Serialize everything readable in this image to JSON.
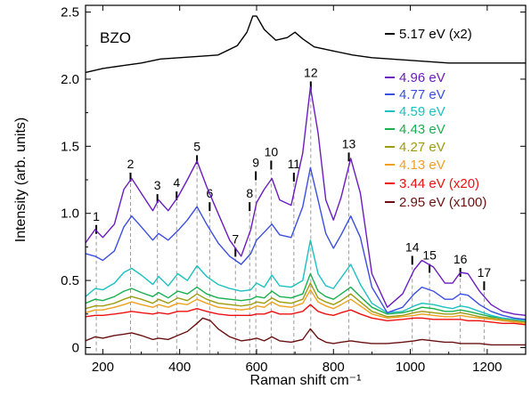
{
  "chart_data": {
    "type": "line",
    "xlabel": "Raman shift cm⁻¹",
    "ylabel": "Intensity (arb. units)",
    "xlim": [
      155,
      1300
    ],
    "ylim": [
      -0.05,
      2.55
    ],
    "xticks": [
      200,
      400,
      600,
      800,
      1000,
      1200
    ],
    "yticks": [
      0,
      0.5,
      1.0,
      1.5,
      2.0,
      2.5
    ],
    "ytick_labels": [
      "0",
      "0.5",
      "1.0",
      "1.5",
      "2.0",
      "2.5"
    ],
    "sample_label": "BZO",
    "legend_position": "right",
    "series": [
      {
        "name": "5.17 eV (x2)",
        "color": "#000000",
        "x": [
          155,
          200,
          250,
          300,
          350,
          400,
          450,
          500,
          550,
          575,
          590,
          600,
          620,
          650,
          680,
          700,
          720,
          750,
          800,
          850,
          900,
          950,
          1000,
          1050,
          1100,
          1150,
          1200,
          1250,
          1300
        ],
        "y": [
          2.05,
          2.08,
          2.1,
          2.12,
          2.15,
          2.16,
          2.17,
          2.18,
          2.25,
          2.35,
          2.47,
          2.47,
          2.37,
          2.29,
          2.31,
          2.35,
          2.3,
          2.24,
          2.21,
          2.18,
          2.16,
          2.15,
          2.14,
          2.13,
          2.12,
          2.12,
          2.12,
          2.12,
          2.12
        ]
      },
      {
        "name": "4.96 eV",
        "color": "#6a1cc0",
        "x": [
          155,
          180,
          200,
          230,
          255,
          275,
          300,
          330,
          345,
          370,
          395,
          420,
          445,
          470,
          500,
          530,
          560,
          585,
          600,
          620,
          640,
          660,
          690,
          720,
          740,
          760,
          780,
          800,
          820,
          845,
          870,
          900,
          940,
          980,
          1010,
          1030,
          1060,
          1090,
          1110,
          1130,
          1150,
          1180,
          1210,
          1240,
          1270,
          1300
        ],
        "y": [
          0.78,
          0.88,
          0.82,
          0.92,
          1.18,
          1.26,
          1.15,
          1.02,
          1.1,
          1.02,
          1.12,
          1.25,
          1.39,
          1.2,
          1.0,
          0.8,
          0.68,
          0.88,
          1.08,
          1.18,
          1.26,
          1.1,
          1.06,
          1.45,
          1.94,
          1.6,
          1.1,
          0.95,
          1.12,
          1.41,
          1.15,
          0.55,
          0.3,
          0.4,
          0.58,
          0.65,
          0.6,
          0.48,
          0.48,
          0.56,
          0.55,
          0.42,
          0.32,
          0.27,
          0.25,
          0.24
        ]
      },
      {
        "name": "4.77 eV",
        "color": "#3a4ee0",
        "x": [
          155,
          180,
          200,
          230,
          255,
          275,
          300,
          330,
          345,
          370,
          395,
          420,
          445,
          470,
          500,
          530,
          560,
          585,
          600,
          620,
          640,
          660,
          690,
          720,
          740,
          760,
          780,
          800,
          820,
          845,
          870,
          900,
          940,
          980,
          1010,
          1030,
          1060,
          1090,
          1110,
          1130,
          1150,
          1180,
          1210,
          1240,
          1270,
          1300
        ],
        "y": [
          0.7,
          0.68,
          0.65,
          0.72,
          0.9,
          0.98,
          0.9,
          0.8,
          0.85,
          0.8,
          0.87,
          0.95,
          1.05,
          0.92,
          0.78,
          0.68,
          0.62,
          0.7,
          0.8,
          0.86,
          0.92,
          0.84,
          0.82,
          1.05,
          1.34,
          1.1,
          0.85,
          0.74,
          0.84,
          0.98,
          0.82,
          0.45,
          0.26,
          0.3,
          0.4,
          0.45,
          0.42,
          0.36,
          0.36,
          0.4,
          0.39,
          0.32,
          0.27,
          0.24,
          0.22,
          0.21
        ]
      },
      {
        "name": "4.59 eV",
        "color": "#1cc0c0",
        "x": [
          155,
          180,
          200,
          230,
          255,
          275,
          300,
          330,
          345,
          370,
          395,
          420,
          445,
          470,
          500,
          530,
          560,
          585,
          600,
          620,
          640,
          660,
          690,
          720,
          740,
          760,
          780,
          800,
          820,
          845,
          870,
          900,
          940,
          980,
          1010,
          1030,
          1060,
          1090,
          1110,
          1130,
          1150,
          1180,
          1210,
          1240,
          1270,
          1300
        ],
        "y": [
          0.38,
          0.44,
          0.43,
          0.48,
          0.56,
          0.59,
          0.54,
          0.47,
          0.53,
          0.46,
          0.55,
          0.5,
          0.61,
          0.53,
          0.47,
          0.44,
          0.42,
          0.43,
          0.48,
          0.45,
          0.54,
          0.46,
          0.45,
          0.5,
          0.8,
          0.55,
          0.46,
          0.44,
          0.52,
          0.62,
          0.47,
          0.33,
          0.26,
          0.27,
          0.31,
          0.33,
          0.32,
          0.3,
          0.29,
          0.31,
          0.3,
          0.27,
          0.24,
          0.22,
          0.21,
          0.2
        ]
      },
      {
        "name": "4.43 eV",
        "color": "#1ab050",
        "x": [
          155,
          180,
          200,
          230,
          255,
          275,
          300,
          330,
          345,
          370,
          395,
          420,
          445,
          470,
          500,
          530,
          560,
          585,
          600,
          620,
          640,
          660,
          690,
          720,
          740,
          760,
          780,
          800,
          820,
          845,
          870,
          900,
          940,
          980,
          1010,
          1030,
          1060,
          1090,
          1110,
          1130,
          1150,
          1180,
          1210,
          1240,
          1270,
          1300
        ],
        "y": [
          0.33,
          0.36,
          0.35,
          0.38,
          0.42,
          0.44,
          0.41,
          0.38,
          0.41,
          0.37,
          0.42,
          0.4,
          0.45,
          0.4,
          0.37,
          0.36,
          0.35,
          0.36,
          0.38,
          0.37,
          0.42,
          0.38,
          0.37,
          0.4,
          0.55,
          0.42,
          0.38,
          0.36,
          0.4,
          0.45,
          0.38,
          0.3,
          0.25,
          0.26,
          0.28,
          0.3,
          0.29,
          0.27,
          0.27,
          0.28,
          0.27,
          0.25,
          0.23,
          0.22,
          0.21,
          0.2
        ]
      },
      {
        "name": "4.27 eV",
        "color": "#9c9c10",
        "x": [
          155,
          180,
          200,
          230,
          255,
          275,
          300,
          330,
          345,
          370,
          395,
          420,
          445,
          470,
          500,
          530,
          560,
          585,
          600,
          620,
          640,
          660,
          690,
          720,
          740,
          760,
          780,
          800,
          820,
          845,
          870,
          900,
          940,
          980,
          1010,
          1030,
          1060,
          1090,
          1110,
          1130,
          1150,
          1180,
          1210,
          1240,
          1270,
          1300
        ],
        "y": [
          0.29,
          0.31,
          0.31,
          0.33,
          0.36,
          0.38,
          0.36,
          0.33,
          0.36,
          0.33,
          0.37,
          0.35,
          0.4,
          0.36,
          0.33,
          0.32,
          0.31,
          0.32,
          0.34,
          0.33,
          0.37,
          0.34,
          0.33,
          0.36,
          0.48,
          0.37,
          0.34,
          0.32,
          0.35,
          0.4,
          0.34,
          0.27,
          0.23,
          0.24,
          0.26,
          0.27,
          0.26,
          0.25,
          0.25,
          0.26,
          0.25,
          0.23,
          0.22,
          0.21,
          0.2,
          0.19
        ]
      },
      {
        "name": "4.13 eV",
        "color": "#f0a020",
        "x": [
          155,
          180,
          200,
          230,
          255,
          275,
          300,
          330,
          345,
          370,
          395,
          420,
          445,
          470,
          500,
          530,
          560,
          585,
          600,
          620,
          640,
          660,
          690,
          720,
          740,
          760,
          780,
          800,
          820,
          845,
          870,
          900,
          940,
          980,
          1010,
          1030,
          1060,
          1090,
          1110,
          1130,
          1150,
          1180,
          1210,
          1240,
          1270,
          1300
        ],
        "y": [
          0.26,
          0.28,
          0.28,
          0.3,
          0.32,
          0.34,
          0.32,
          0.3,
          0.32,
          0.3,
          0.33,
          0.32,
          0.36,
          0.33,
          0.3,
          0.29,
          0.28,
          0.29,
          0.31,
          0.3,
          0.34,
          0.31,
          0.3,
          0.33,
          0.43,
          0.34,
          0.31,
          0.29,
          0.32,
          0.36,
          0.31,
          0.25,
          0.22,
          0.23,
          0.24,
          0.25,
          0.24,
          0.23,
          0.23,
          0.24,
          0.23,
          0.22,
          0.21,
          0.2,
          0.19,
          0.18
        ]
      },
      {
        "name": "3.44 eV (x20)",
        "color": "#ee1010",
        "x": [
          155,
          180,
          200,
          230,
          255,
          275,
          300,
          330,
          345,
          370,
          395,
          420,
          445,
          470,
          500,
          530,
          560,
          585,
          600,
          620,
          640,
          660,
          690,
          720,
          740,
          760,
          780,
          800,
          820,
          845,
          870,
          900,
          940,
          980,
          1010,
          1030,
          1060,
          1090,
          1110,
          1130,
          1150,
          1180,
          1210,
          1240,
          1270,
          1300
        ],
        "y": [
          0.23,
          0.24,
          0.24,
          0.25,
          0.26,
          0.27,
          0.26,
          0.25,
          0.26,
          0.25,
          0.27,
          0.27,
          0.29,
          0.27,
          0.25,
          0.24,
          0.24,
          0.24,
          0.25,
          0.25,
          0.27,
          0.25,
          0.25,
          0.27,
          0.32,
          0.27,
          0.25,
          0.24,
          0.26,
          0.28,
          0.25,
          0.22,
          0.2,
          0.21,
          0.22,
          0.22,
          0.21,
          0.21,
          0.21,
          0.21,
          0.2,
          0.2,
          0.19,
          0.18,
          0.18,
          0.17
        ]
      },
      {
        "name": "2.95 eV (x100)",
        "color": "#6a1010",
        "x": [
          155,
          180,
          200,
          230,
          255,
          275,
          300,
          330,
          345,
          370,
          395,
          420,
          445,
          460,
          480,
          500,
          530,
          560,
          585,
          600,
          620,
          640,
          660,
          690,
          720,
          740,
          760,
          780,
          800,
          820,
          845,
          870,
          900,
          940,
          980,
          1010,
          1030,
          1060,
          1090,
          1110,
          1130,
          1150,
          1180,
          1210,
          1240,
          1270,
          1300
        ],
        "y": [
          0.05,
          0.08,
          0.07,
          0.09,
          0.1,
          0.11,
          0.09,
          0.06,
          0.07,
          0.06,
          0.09,
          0.12,
          0.18,
          0.22,
          0.2,
          0.14,
          0.08,
          0.05,
          0.06,
          0.07,
          0.05,
          0.08,
          0.05,
          0.04,
          0.06,
          0.14,
          0.07,
          0.04,
          0.03,
          0.04,
          0.05,
          0.04,
          0.03,
          0.03,
          0.04,
          0.05,
          0.06,
          0.05,
          0.04,
          0.04,
          0.03,
          0.03,
          0.03,
          0.02,
          0.02,
          0.02,
          0.02
        ]
      }
    ],
    "peak_labels": [
      {
        "label": "1",
        "x": 183,
        "y": 0.9
      },
      {
        "label": "2",
        "x": 272,
        "y": 1.29
      },
      {
        "label": "3",
        "x": 342,
        "y": 1.13
      },
      {
        "label": "4",
        "x": 392,
        "y": 1.15
      },
      {
        "label": "5",
        "x": 445,
        "y": 1.42
      },
      {
        "label": "6",
        "x": 478,
        "y": 1.07
      },
      {
        "label": "7",
        "x": 545,
        "y": 0.73
      },
      {
        "label": "8",
        "x": 582,
        "y": 1.07
      },
      {
        "label": "9",
        "x": 598,
        "y": 1.3
      },
      {
        "label": "10",
        "x": 638,
        "y": 1.38
      },
      {
        "label": "11",
        "x": 697,
        "y": 1.29
      },
      {
        "label": "12",
        "x": 741,
        "y": 1.97
      },
      {
        "label": "13",
        "x": 840,
        "y": 1.44
      },
      {
        "label": "14",
        "x": 1005,
        "y": 0.67
      },
      {
        "label": "15",
        "x": 1050,
        "y": 0.61
      },
      {
        "label": "16",
        "x": 1130,
        "y": 0.58
      },
      {
        "label": "17",
        "x": 1192,
        "y": 0.48
      }
    ]
  }
}
